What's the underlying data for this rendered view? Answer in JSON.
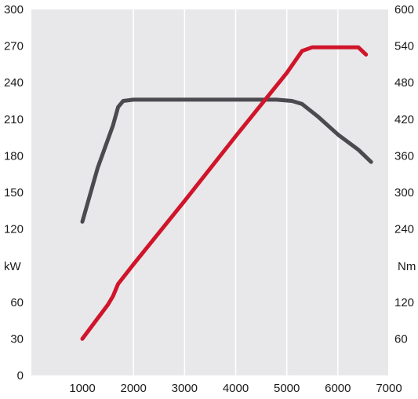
{
  "chart_data": {
    "type": "line",
    "title": "",
    "x_ticks": [
      1000,
      2000,
      3000,
      4000,
      5000,
      6000,
      7000
    ],
    "left_axis": {
      "unit": "kW",
      "range": [
        0,
        300
      ],
      "ticks": [
        "0",
        "30",
        "60",
        "120",
        "150",
        "180",
        "210",
        "240",
        "270",
        "300"
      ],
      "tick_values": [
        0,
        30,
        60,
        120,
        150,
        180,
        210,
        240,
        270,
        300
      ]
    },
    "right_axis": {
      "unit": "Nm",
      "range": [
        0,
        600
      ],
      "ticks": [
        "60",
        "120",
        "240",
        "300",
        "360",
        "420",
        "480",
        "540",
        "600"
      ],
      "tick_values": [
        60,
        120,
        240,
        300,
        360,
        420,
        480,
        540,
        600
      ]
    },
    "xlim": [
      0,
      7000
    ],
    "grid": "vertical",
    "series": [
      {
        "axis": "right",
        "color": "#4a4a4f",
        "x": [
          1000,
          1300,
          1600,
          1700,
          1800,
          2000,
          3000,
          4000,
          4800,
          5100,
          5300,
          5600,
          6000,
          6400,
          6650
        ],
        "y": [
          252,
          340,
          410,
          440,
          450,
          452,
          452,
          452,
          452,
          450,
          445,
          425,
          395,
          370,
          350
        ]
      },
      {
        "axis": "left",
        "color": "#d0152b",
        "x": [
          1000,
          1500,
          1600,
          1700,
          2000,
          3000,
          4000,
          5000,
          5300,
          5500,
          6000,
          6400,
          6550
        ],
        "y": [
          30,
          58,
          65,
          75,
          91,
          143,
          196,
          248,
          266,
          269,
          269,
          269,
          263
        ]
      }
    ]
  }
}
